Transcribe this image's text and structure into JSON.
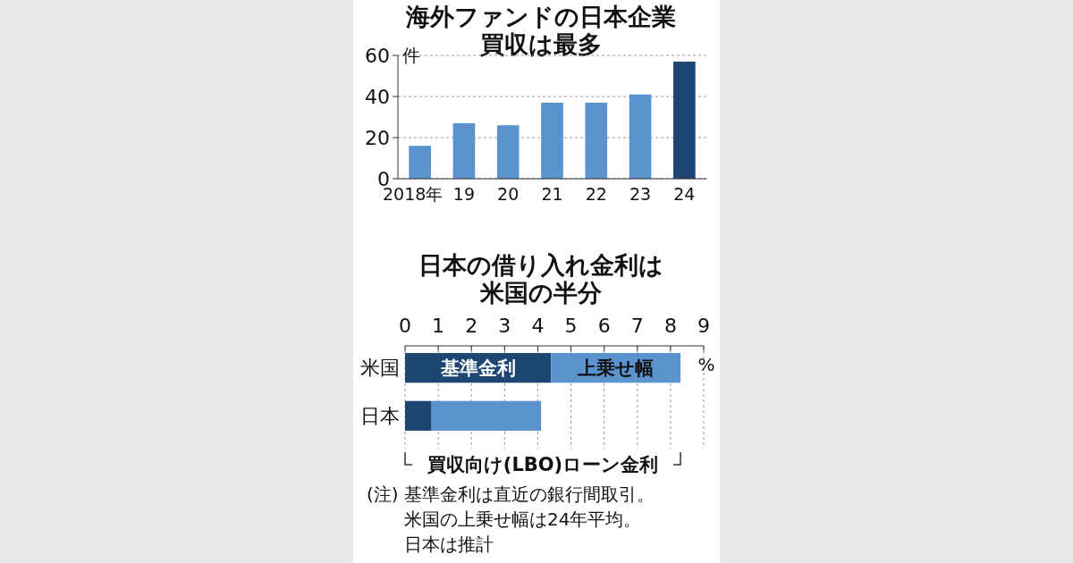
{
  "chart_data": [
    {
      "type": "bar",
      "title": "海外ファンドの日本企業買収は最多",
      "ylabel": "件",
      "categories": [
        "2018年",
        "19",
        "20",
        "21",
        "22",
        "23",
        "24"
      ],
      "values": [
        16,
        27,
        26,
        37,
        37,
        41,
        57
      ],
      "colors": [
        "#5b93cf",
        "#5b93cf",
        "#5b93cf",
        "#5b93cf",
        "#5b93cf",
        "#5b93cf",
        "#1d4673"
      ],
      "ylim": [
        0,
        60
      ],
      "yticks": [
        0,
        20,
        40,
        60
      ],
      "grid": "y"
    },
    {
      "type": "bar",
      "orientation": "horizontal",
      "stacked": true,
      "title": "日本の借り入れ金利は米国の半分",
      "xlabel": "%",
      "categories": [
        "米国",
        "日本"
      ],
      "series": [
        {
          "name": "基準金利",
          "color": "#1d4673",
          "values": [
            4.4,
            0.8
          ]
        },
        {
          "name": "上乗せ幅",
          "color": "#5b93cf",
          "values": [
            3.9,
            3.3
          ]
        }
      ],
      "xlim": [
        0,
        9
      ],
      "xticks": [
        0,
        1,
        2,
        3,
        4,
        5,
        6,
        7,
        8,
        9
      ],
      "grid": "x",
      "annotations": [
        "買収向け(LBO)ローン金利",
        "(注) 基準金利は直近の銀行間取引。米国の上乗せ幅は24年平均。日本は推計"
      ]
    }
  ]
}
